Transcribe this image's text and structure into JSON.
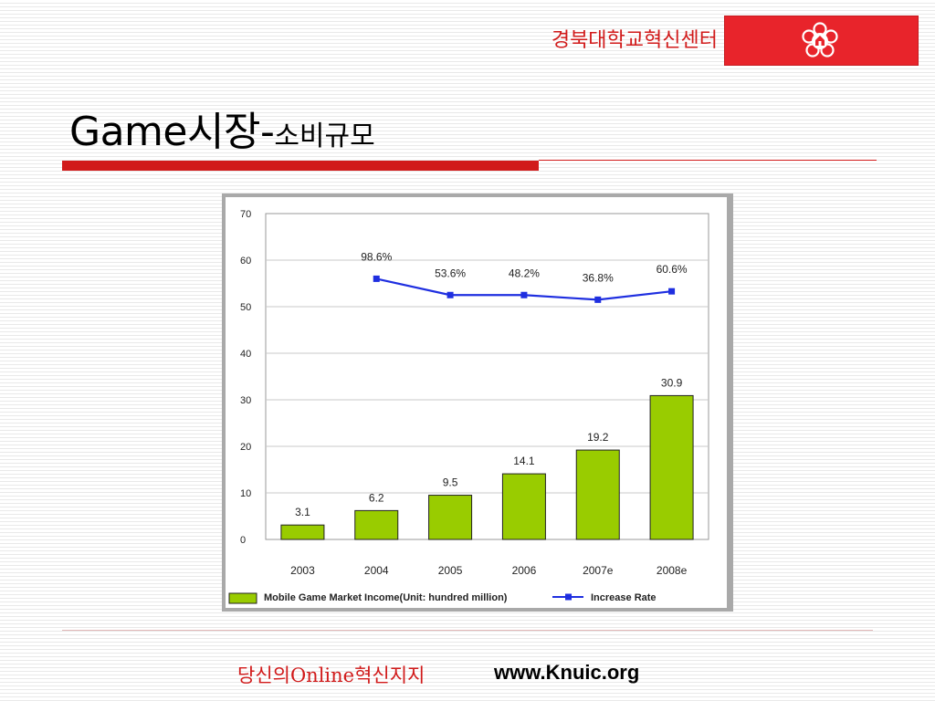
{
  "header": {
    "org_name": "경북대학교혁신센터",
    "brand_color": "#e8242b",
    "logo_icon": "university-emblem-icon"
  },
  "title": {
    "main": "Game시장-",
    "sub": "소비규모"
  },
  "chart_data": {
    "type": "bar",
    "categories": [
      "2003",
      "2004",
      "2005",
      "2006",
      "2007e",
      "2008e"
    ],
    "ylim": [
      0,
      70
    ],
    "yticks": [
      0,
      10,
      20,
      30,
      40,
      50,
      60,
      70
    ],
    "grid": true,
    "legend_position": "bottom",
    "series": [
      {
        "name": "Mobile Game Market Income(Unit: hundred million)",
        "type": "bar",
        "color": "#99cc00",
        "values": [
          3.1,
          6.2,
          9.5,
          14.1,
          19.2,
          30.9
        ],
        "labels": [
          "3.1",
          "6.2",
          "9.5",
          "14.1",
          "19.2",
          "30.9"
        ]
      },
      {
        "name": "Increase  Rate",
        "type": "line",
        "color": "#1f2fe0",
        "values": [
          null,
          56,
          52.5,
          52.5,
          51.5,
          53.3
        ],
        "labels": [
          "",
          "98.6%",
          "53.6%",
          "48.2%",
          "36.8%",
          "60.6%"
        ]
      }
    ]
  },
  "footer": {
    "slogan": "당신의Online혁신지지",
    "url": "www.Knuic.org"
  }
}
